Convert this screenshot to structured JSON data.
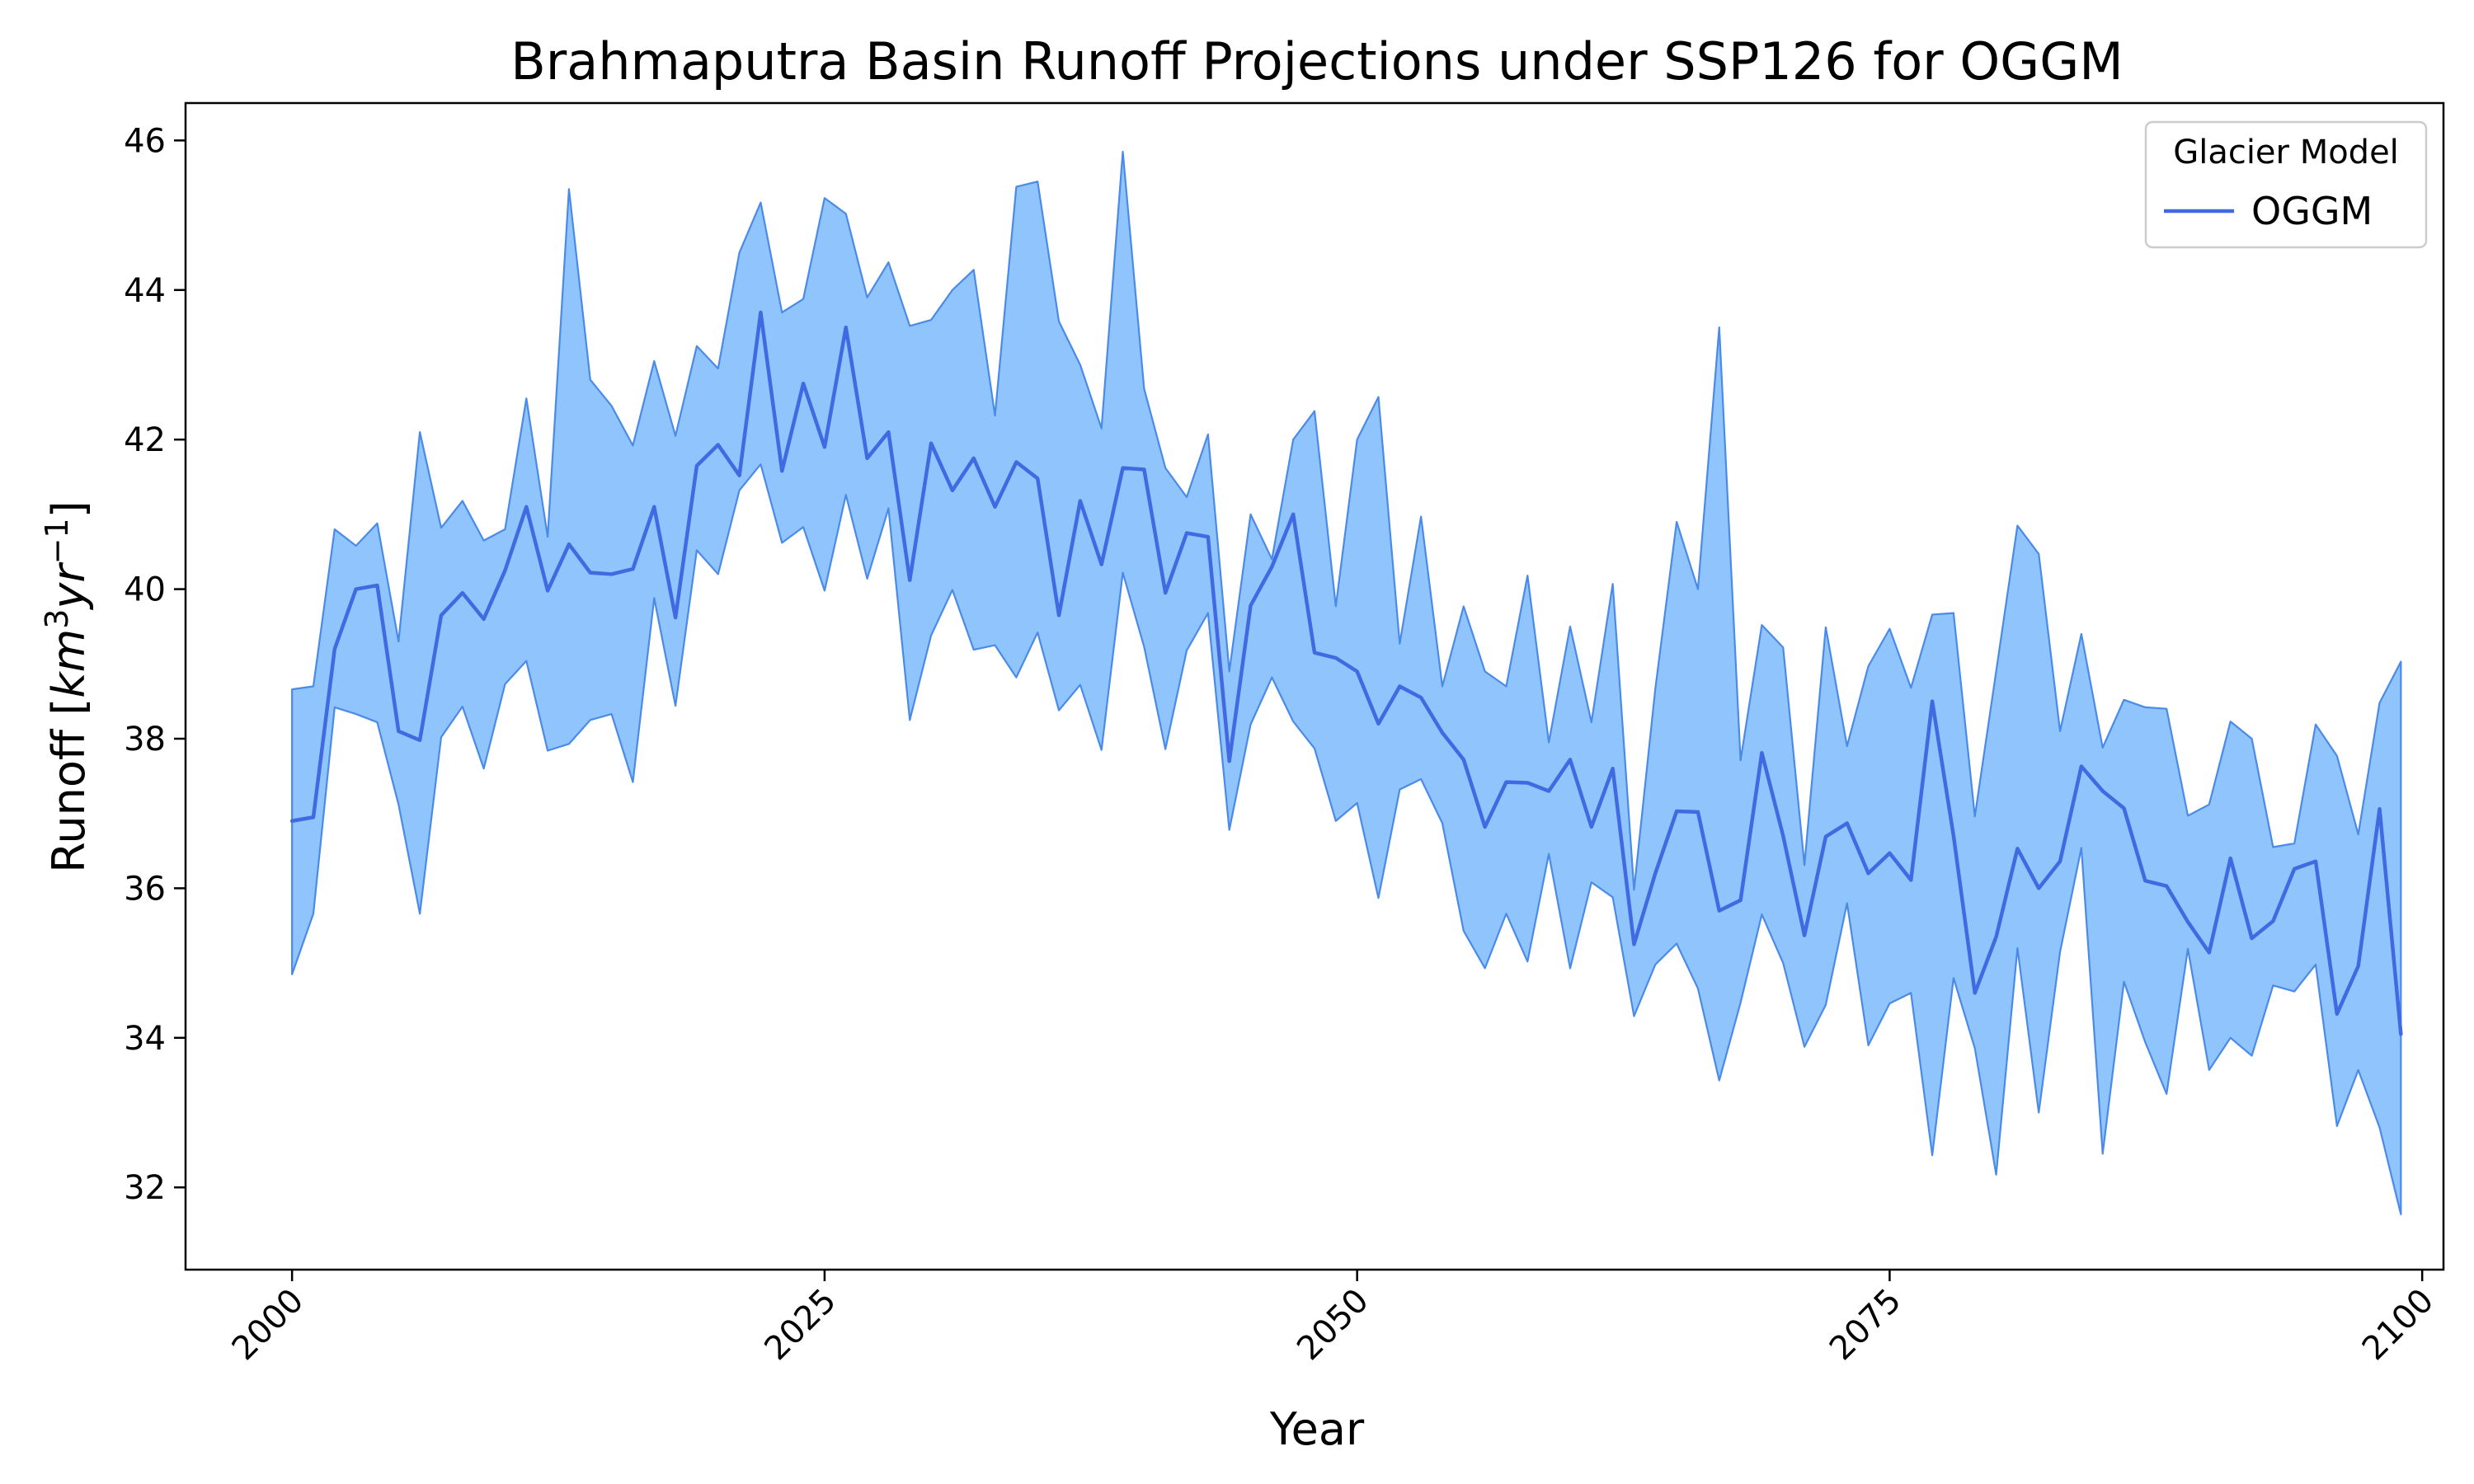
{
  "chart_data": {
    "type": "line",
    "title": "Brahmaputra Basin Runoff Projections under SSP126 for OGGM",
    "xlabel": "Year",
    "ylabel": "Runoff [km³yr⁻¹]",
    "ylabel_parts": {
      "prefix": "Runoff [",
      "unit_base": "km",
      "unit_exp": "3",
      "unit_mid": "yr",
      "unit_exp2": "−1",
      "suffix": "]"
    },
    "xlim": [
      1995,
      2101
    ],
    "ylim": [
      30.9,
      46.5
    ],
    "xticks": [
      2000,
      2025,
      2050,
      2075,
      2100
    ],
    "xtick_labels": [
      "2000",
      "2025",
      "2050",
      "2075",
      "2100"
    ],
    "yticks": [
      32,
      34,
      36,
      38,
      40,
      42,
      44,
      46
    ],
    "ytick_labels": [
      "32",
      "34",
      "36",
      "38",
      "40",
      "42",
      "44",
      "46"
    ],
    "grid": false,
    "legend": {
      "title": "Glacier Model",
      "position": "top-right",
      "entries": [
        "OGGM"
      ]
    },
    "colors": {
      "line": "#4169e1",
      "band_fill": "#90c4fc",
      "band_edge": "#4a8ae8"
    },
    "x": [
      2000,
      2001,
      2002,
      2003,
      2004,
      2005,
      2006,
      2007,
      2008,
      2009,
      2010,
      2011,
      2012,
      2013,
      2014,
      2015,
      2016,
      2017,
      2018,
      2019,
      2020,
      2021,
      2022,
      2023,
      2024,
      2025,
      2026,
      2027,
      2028,
      2029,
      2030,
      2031,
      2032,
      2033,
      2034,
      2035,
      2036,
      2037,
      2038,
      2039,
      2040,
      2041,
      2042,
      2043,
      2044,
      2045,
      2046,
      2047,
      2048,
      2049,
      2050,
      2051,
      2052,
      2053,
      2054,
      2055,
      2056,
      2057,
      2058,
      2059,
      2060,
      2061,
      2062,
      2063,
      2064,
      2065,
      2066,
      2067,
      2068,
      2069,
      2070,
      2071,
      2072,
      2073,
      2074,
      2075,
      2076,
      2077,
      2078,
      2079,
      2080,
      2081,
      2082,
      2083,
      2084,
      2085,
      2086,
      2087,
      2088,
      2089,
      2090,
      2091,
      2092,
      2093,
      2094,
      2095,
      2096,
      2097,
      2098,
      2099
    ],
    "series": [
      {
        "name": "OGGM",
        "values": [
          36.9,
          36.95,
          39.2,
          40.0,
          40.05,
          38.1,
          37.98,
          39.65,
          39.95,
          39.6,
          40.25,
          41.1,
          39.98,
          40.6,
          40.22,
          40.2,
          40.27,
          41.1,
          39.62,
          41.65,
          41.93,
          41.52,
          43.7,
          41.58,
          42.75,
          41.9,
          43.5,
          41.75,
          42.1,
          40.12,
          41.95,
          41.32,
          41.75,
          41.1,
          41.7,
          41.48,
          39.65,
          41.18,
          40.33,
          41.62,
          41.6,
          39.95,
          40.75,
          40.7,
          37.7,
          39.78,
          40.3,
          41.0,
          39.15,
          39.08,
          38.9,
          38.2,
          38.7,
          38.55,
          38.08,
          37.72,
          36.82,
          37.42,
          37.41,
          37.3,
          37.72,
          36.82,
          37.6,
          35.25,
          36.2,
          37.03,
          37.02,
          35.7,
          35.84,
          37.81,
          36.7,
          35.37,
          36.69,
          36.87,
          36.2,
          36.47,
          36.11,
          38.5,
          36.7,
          34.6,
          35.35,
          36.53,
          36.0,
          36.36,
          37.63,
          37.3,
          37.07,
          36.1,
          36.03,
          35.55,
          35.14,
          36.4,
          35.33,
          35.56,
          36.26,
          36.36,
          34.32,
          34.96,
          37.06,
          34.05
        ]
      }
    ],
    "band_upper": [
      38.66,
      38.7,
      40.8,
      40.58,
      40.88,
      39.3,
      42.1,
      40.82,
      41.18,
      40.65,
      40.8,
      42.55,
      40.7,
      45.35,
      42.8,
      42.45,
      41.92,
      43.05,
      42.05,
      43.25,
      42.95,
      44.5,
      45.17,
      43.7,
      43.88,
      45.23,
      45.02,
      43.9,
      44.37,
      43.52,
      43.6,
      44.0,
      44.27,
      42.32,
      45.38,
      45.45,
      43.58,
      43.0,
      42.15,
      45.85,
      42.68,
      41.62,
      41.23,
      42.07,
      38.9,
      41.0,
      40.4,
      42.0,
      42.38,
      39.77,
      42.0,
      42.57,
      39.27,
      40.97,
      38.7,
      39.77,
      38.9,
      38.7,
      40.18,
      37.95,
      39.5,
      38.22,
      40.07,
      35.98,
      38.67,
      40.9,
      40.0,
      43.5,
      37.71,
      39.52,
      39.22,
      36.31,
      39.49,
      37.9,
      38.97,
      39.47,
      38.68,
      39.66,
      39.68,
      36.96,
      38.9,
      40.85,
      40.47,
      38.1,
      39.4,
      37.88,
      38.52,
      38.42,
      38.4,
      36.97,
      37.12,
      38.23,
      38.0,
      36.55,
      36.6,
      38.19,
      37.77,
      36.72,
      38.48,
      39.03
    ],
    "band_lower": [
      34.85,
      35.66,
      38.42,
      38.33,
      38.22,
      37.12,
      35.66,
      38.02,
      38.43,
      37.6,
      38.73,
      39.04,
      37.84,
      37.93,
      38.25,
      38.33,
      37.42,
      39.88,
      38.44,
      40.52,
      40.2,
      41.32,
      41.67,
      40.62,
      40.83,
      39.98,
      41.26,
      40.14,
      41.08,
      38.25,
      39.38,
      39.99,
      39.19,
      39.25,
      38.82,
      39.42,
      38.38,
      38.72,
      37.85,
      40.22,
      39.23,
      37.86,
      39.18,
      39.68,
      36.78,
      38.19,
      38.82,
      38.23,
      37.87,
      36.9,
      37.14,
      35.87,
      37.32,
      37.46,
      36.87,
      35.43,
      34.93,
      35.66,
      35.02,
      36.46,
      34.93,
      36.08,
      35.88,
      34.29,
      34.98,
      35.26,
      34.66,
      33.43,
      34.47,
      35.65,
      35.0,
      33.88,
      34.44,
      35.8,
      33.9,
      34.46,
      34.6,
      32.43,
      34.8,
      33.86,
      32.17,
      35.2,
      33.0,
      35.15,
      36.54,
      32.45,
      34.75,
      33.94,
      33.25,
      35.19,
      33.57,
      34.0,
      33.76,
      34.7,
      34.62,
      34.98,
      32.82,
      33.57,
      32.8,
      31.64
    ]
  }
}
